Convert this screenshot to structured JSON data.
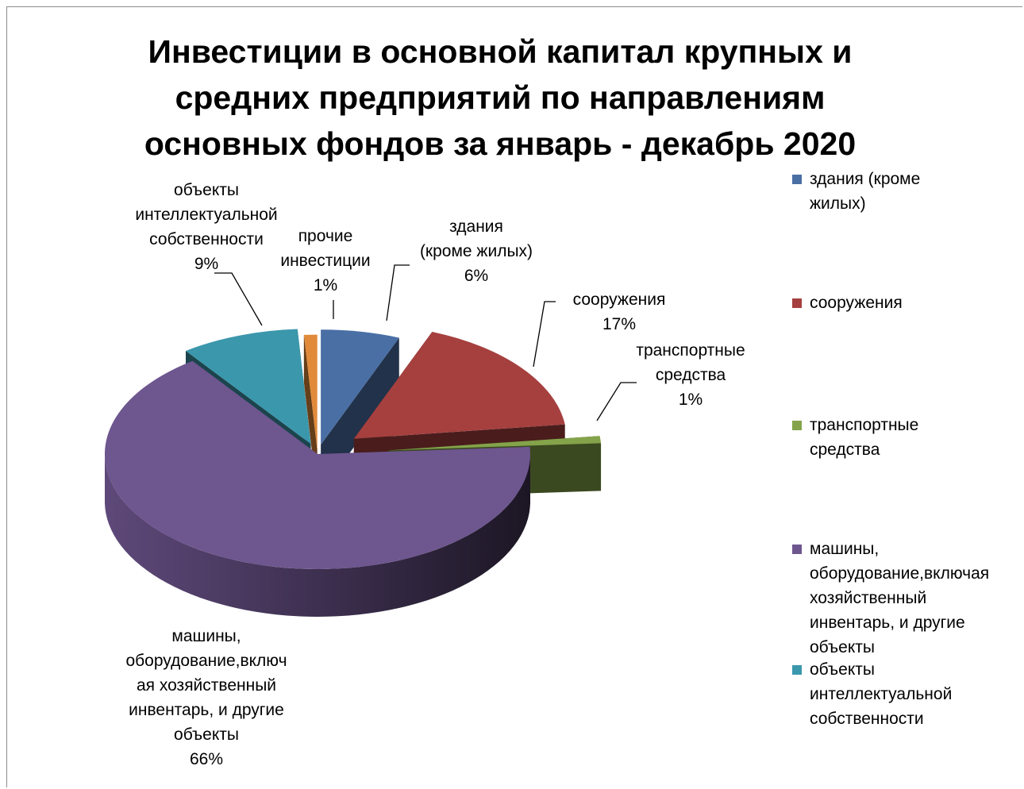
{
  "chart_data": {
    "type": "pie",
    "title": "Инвестиции в основной капитал крупных и средних предприятий по направлениям основных фондов за январь - декабрь 2020",
    "title_lines": [
      "Инвестиции в основной капитал крупных и",
      "средних предприятий по направлениям",
      "основных фондов за январь - декабрь 2020"
    ],
    "three_d": true,
    "legend_position": "right",
    "slices": [
      {
        "key": "buildings",
        "label": "здания (кроме жилых)",
        "value": 6,
        "percent_label": "6%",
        "color": "#4A6FA5",
        "label_lines": [
          "здания",
          "(кроме жилых)",
          "6%"
        ],
        "legend_lines": [
          "здания (кроме",
          "жилых)"
        ]
      },
      {
        "key": "structures",
        "label": "сооружения",
        "value": 17,
        "percent_label": "17%",
        "color": "#A5403F",
        "label_lines": [
          "сооружения",
          "17%"
        ],
        "legend_lines": [
          "сооружения"
        ]
      },
      {
        "key": "transport",
        "label": "транспортные средства",
        "value": 1,
        "percent_label": "1%",
        "color": "#84A34A",
        "label_lines": [
          "транспортные",
          "средства",
          "1%"
        ],
        "legend_lines": [
          "транспортные",
          "средства"
        ]
      },
      {
        "key": "machinery",
        "label": "машины, оборудование,включая хозяйственный инвентарь, и другие объекты",
        "value": 66,
        "percent_label": "66%",
        "color": "#6E568F",
        "label_lines": [
          "машины,",
          "оборудование,включ",
          "ая хозяйственный",
          "инвентарь, и другие",
          "объекты",
          "66%"
        ],
        "legend_lines": [
          "машины,",
          "оборудование,включая",
          "хозяйственный",
          "инвентарь, и другие",
          "объекты"
        ]
      },
      {
        "key": "ip",
        "label": "объекты интеллектуальной собственности",
        "value": 9,
        "percent_label": "9%",
        "color": "#3B97AC",
        "label_lines": [
          "объекты",
          "интеллектуальной",
          "собственности",
          "9%"
        ],
        "legend_lines": [
          "объекты",
          "интеллектуальной",
          "собственности"
        ]
      },
      {
        "key": "other",
        "label": "прочие инвестиции",
        "value": 1,
        "percent_label": "1%",
        "color": "#E08A3A",
        "label_lines": [
          "прочие",
          "инвестиции",
          "1%"
        ],
        "legend_lines": []
      }
    ]
  }
}
